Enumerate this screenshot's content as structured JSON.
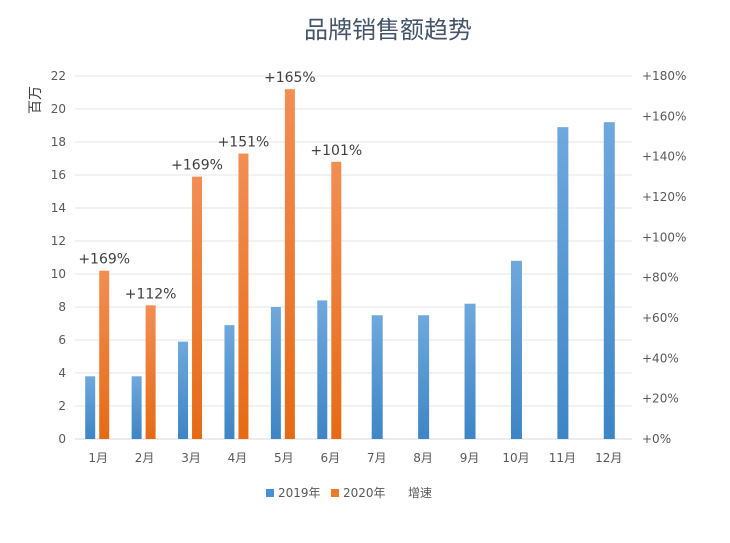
{
  "chart_data": {
    "type": "bar",
    "title": "品牌销售额趋势",
    "ylabel": "百万",
    "ylim": [
      0,
      22
    ],
    "yticks": [
      0,
      2,
      4,
      6,
      8,
      10,
      12,
      14,
      16,
      18,
      20,
      22
    ],
    "y2lim": [
      0,
      180
    ],
    "y2ticks": [
      "+0%",
      "+20%",
      "+40%",
      "+60%",
      "+80%",
      "+100%",
      "+120%",
      "+140%",
      "+160%",
      "+180%"
    ],
    "categories": [
      "1月",
      "2月",
      "3月",
      "4月",
      "5月",
      "6月",
      "7月",
      "8月",
      "9月",
      "10月",
      "11月",
      "12月"
    ],
    "series": [
      {
        "name": "2019年",
        "color": "#4a8fd4",
        "values": [
          3.8,
          3.8,
          5.9,
          6.9,
          8.0,
          8.4,
          7.5,
          7.5,
          8.2,
          10.8,
          18.9,
          19.2
        ]
      },
      {
        "name": "2020年",
        "color": "#f07a2a",
        "values": [
          10.2,
          8.1,
          15.9,
          17.3,
          21.2,
          16.8,
          null,
          null,
          null,
          null,
          null,
          null
        ]
      },
      {
        "name": "增速",
        "values": [
          "+169%",
          "+112%",
          "+169%",
          "+151%",
          "+165%",
          "+101%",
          null,
          null,
          null,
          null,
          null,
          null
        ]
      }
    ],
    "grid": true,
    "legend": "bottom"
  }
}
